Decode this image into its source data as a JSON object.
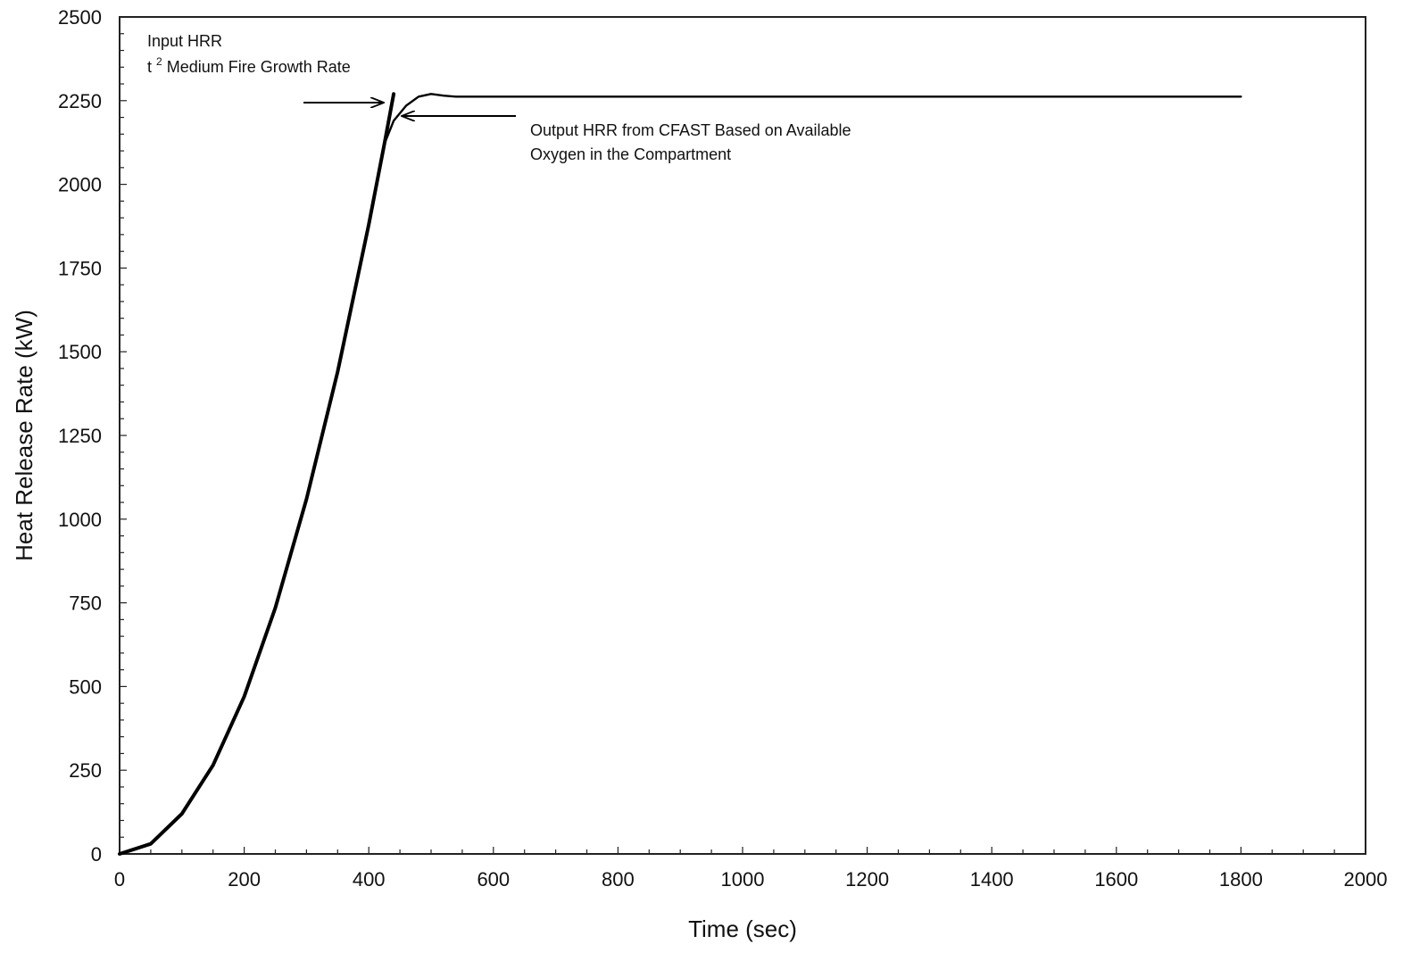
{
  "chart_data": {
    "type": "line",
    "title": "",
    "xlabel": "Time (sec)",
    "ylabel": "Heat Release Rate (kW)",
    "xlim": [
      0,
      2000
    ],
    "ylim": [
      0,
      2500
    ],
    "x_ticks": [
      "0",
      "200",
      "400",
      "600",
      "800",
      "1000",
      "1200",
      "1400",
      "1600",
      "1800",
      "2000"
    ],
    "y_ticks": [
      "0",
      "250",
      "500",
      "750",
      "1000",
      "1250",
      "1500",
      "1750",
      "2000",
      "2250",
      "2500"
    ],
    "grid": false,
    "legend": "none",
    "series": [
      {
        "name": "Input HRR",
        "color": "#000000",
        "x": [
          0,
          50,
          100,
          150,
          200,
          250,
          300,
          350,
          400,
          425,
          440
        ],
        "y": [
          0,
          30,
          120,
          265,
          470,
          735,
          1060,
          1440,
          1880,
          2120,
          2270
        ]
      },
      {
        "name": "Output HRR from CFAST Based on Available Oxygen in the Compartment",
        "color": "#000000",
        "x": [
          0,
          50,
          100,
          150,
          200,
          250,
          300,
          350,
          400,
          425,
          440,
          460,
          480,
          500,
          520,
          540,
          600,
          1000,
          1400,
          1800
        ],
        "y": [
          0,
          30,
          120,
          265,
          470,
          735,
          1060,
          1440,
          1880,
          2120,
          2190,
          2235,
          2262,
          2270,
          2265,
          2262,
          2262,
          2262,
          2262,
          2262
        ]
      }
    ],
    "annotations": {
      "input_line1": "Input HRR",
      "input_line2_base": "t",
      "input_line2_sup": "2",
      "input_line2_rest": " Medium Fire Growth Rate",
      "output_line1": "Output HRR from CFAST Based on Available",
      "output_line2": "Oxygen in the Compartment"
    }
  }
}
